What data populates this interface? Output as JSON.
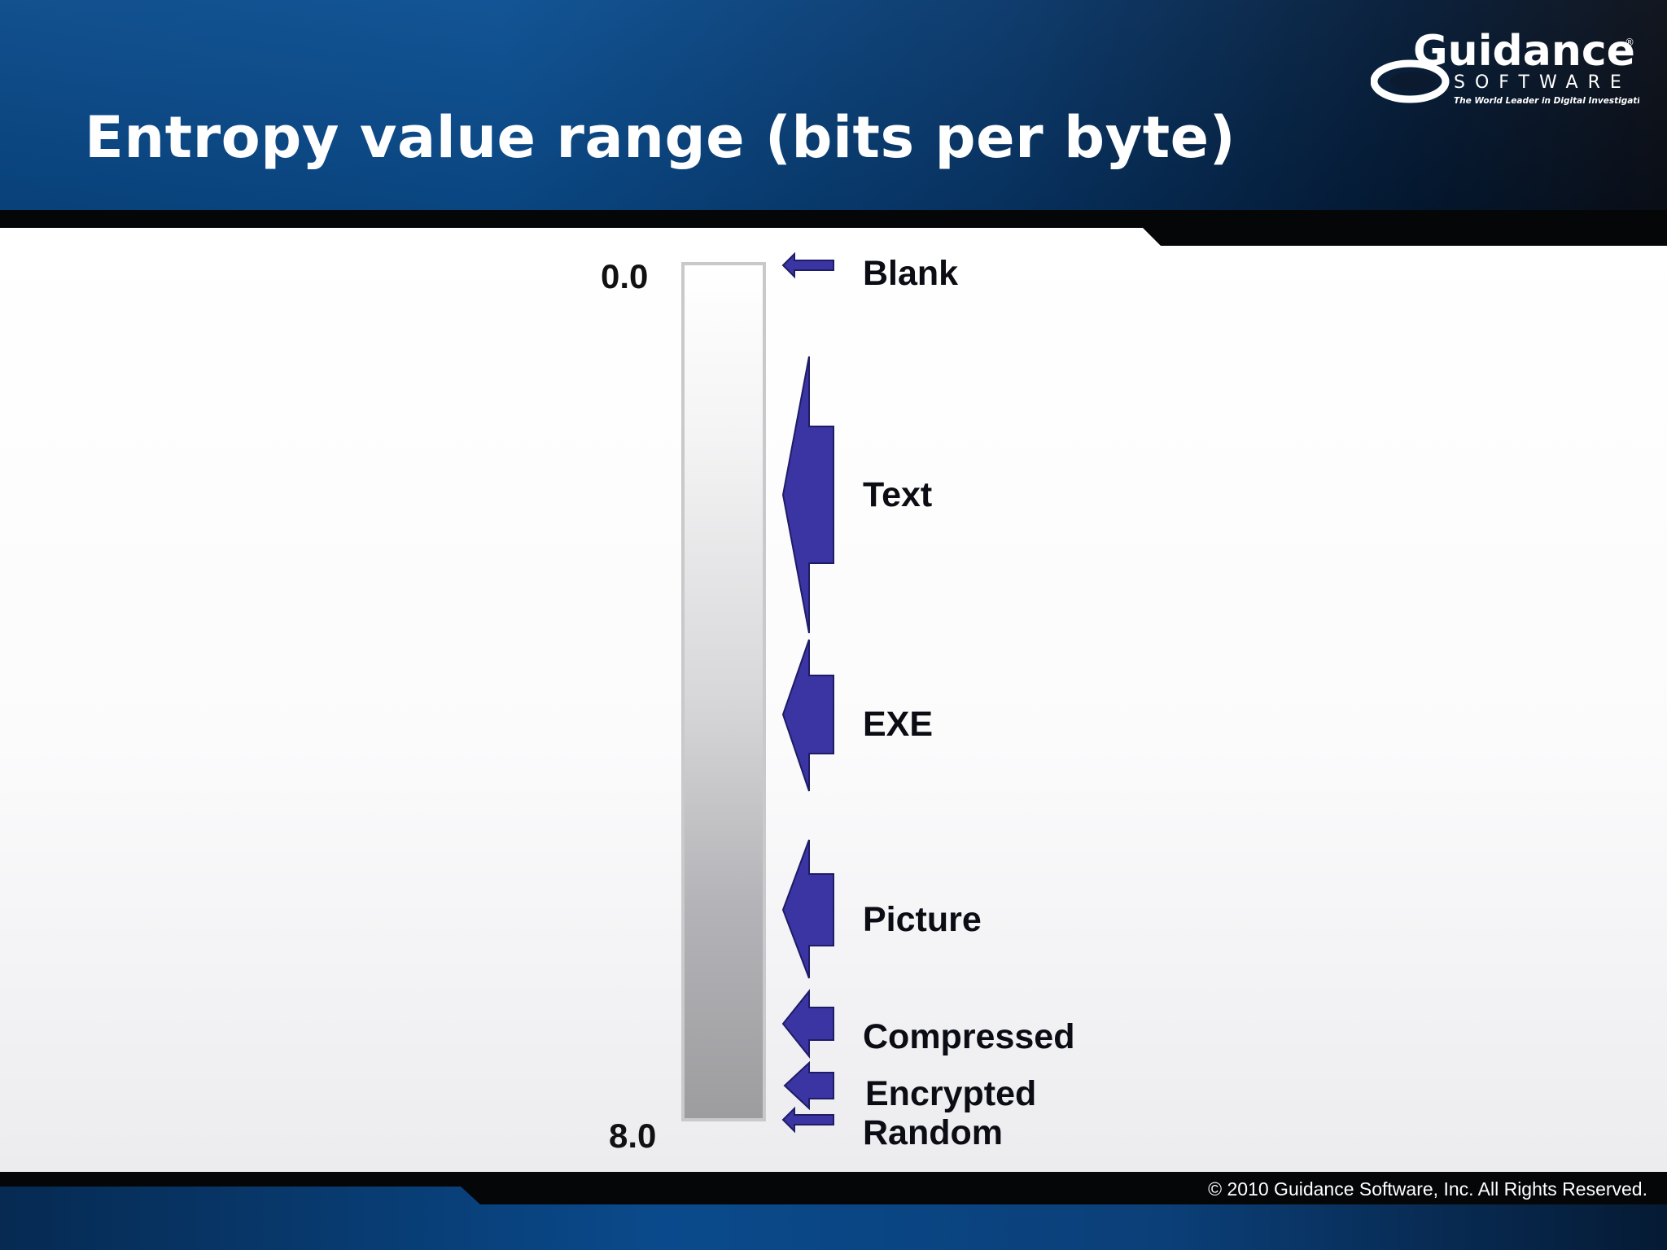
{
  "slide": {
    "title": "Entropy value range (bits per byte)",
    "scale": {
      "min_label": "0.0",
      "max_label": "8.0",
      "min": 0.0,
      "max": 8.0
    },
    "categories": [
      {
        "label": "Blank"
      },
      {
        "label": "Text"
      },
      {
        "label": "EXE"
      },
      {
        "label": "Picture"
      },
      {
        "label": "Compressed"
      },
      {
        "label": "Encrypted"
      },
      {
        "label": "Random"
      }
    ],
    "logo": {
      "name": "Guidance",
      "subtitle": "SOFTWARE",
      "tagline": "The World Leader in Digital Investigations"
    },
    "footer": {
      "copyright": "© 2010 Guidance Software, Inc.  All Rights Reserved."
    },
    "colors": {
      "arrow": "#3a35a2",
      "header_blue": "#0b4f92",
      "band_black": "#050607"
    }
  }
}
